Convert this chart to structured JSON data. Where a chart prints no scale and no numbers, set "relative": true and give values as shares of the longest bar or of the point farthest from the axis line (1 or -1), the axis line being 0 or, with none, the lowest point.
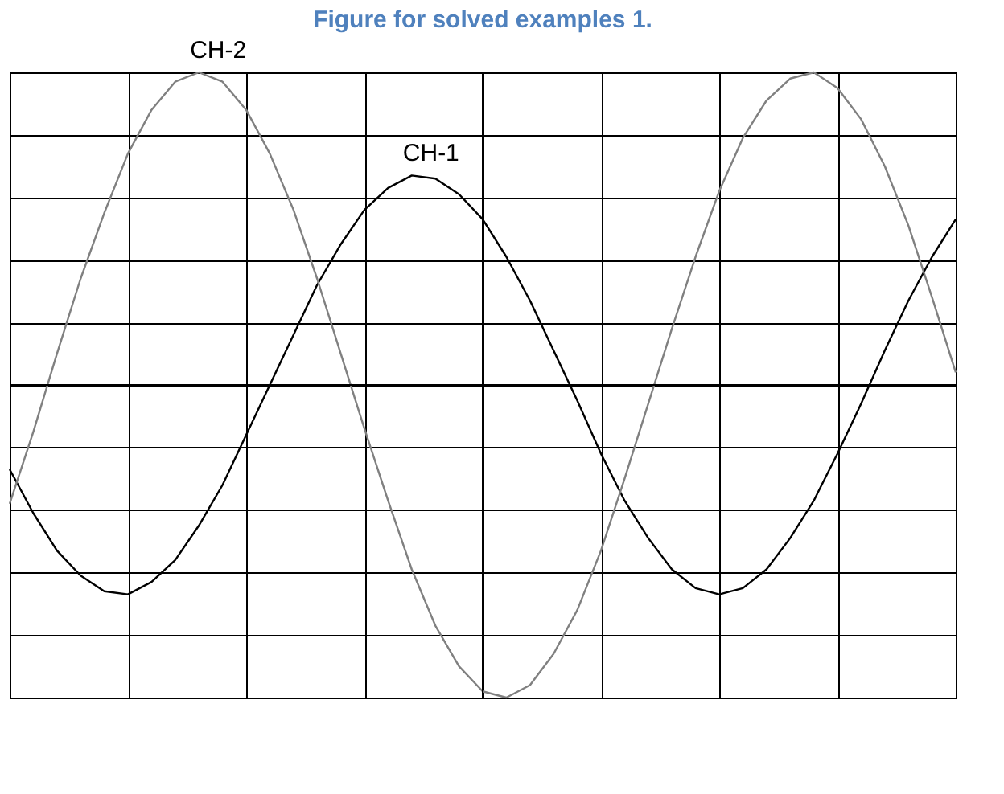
{
  "chart_data": {
    "type": "line",
    "title": "Figure for solved examples 1.",
    "relative": true,
    "grid": true,
    "legend": false,
    "marker": "none",
    "line_style": "solid",
    "categories": [
      null,
      null,
      null,
      null,
      null,
      null,
      null,
      null,
      null,
      null,
      null,
      null,
      null,
      null,
      null,
      null,
      null,
      null,
      null,
      null,
      null,
      null,
      null,
      null,
      null,
      null,
      null,
      null,
      null,
      null,
      null,
      null,
      null,
      null,
      null,
      null,
      null,
      null,
      null,
      null,
      null
    ],
    "series": [
      {
        "name": "CH-1",
        "color": "#000000",
        "values": [
          -0.27,
          -0.41,
          -0.53,
          -0.61,
          -0.66,
          -0.67,
          -0.63,
          -0.56,
          -0.45,
          -0.32,
          -0.16,
          0,
          0.16,
          0.32,
          0.45,
          0.56,
          0.63,
          0.67,
          0.66,
          0.61,
          0.53,
          0.41,
          0.27,
          0.11,
          -0.05,
          -0.22,
          -0.37,
          -0.49,
          -0.59,
          -0.65,
          -0.67,
          -0.65,
          -0.59,
          -0.49,
          -0.37,
          -0.22,
          -0.06,
          0.11,
          0.27,
          0.41,
          0.53
        ]
      },
      {
        "name": "CH-2",
        "color": "#808080",
        "values": [
          -0.38,
          -0.15,
          0.1,
          0.34,
          0.55,
          0.74,
          0.88,
          0.97,
          1.0,
          0.97,
          0.88,
          0.74,
          0.56,
          0.34,
          0.1,
          -0.14,
          -0.37,
          -0.59,
          -0.77,
          -0.9,
          -0.98,
          -1.0,
          -0.96,
          -0.86,
          -0.72,
          -0.53,
          -0.3,
          -0.06,
          0.18,
          0.41,
          0.62,
          0.79,
          0.91,
          0.98,
          1.0,
          0.95,
          0.85,
          0.7,
          0.51,
          0.28,
          0.04
        ]
      }
    ]
  }
}
